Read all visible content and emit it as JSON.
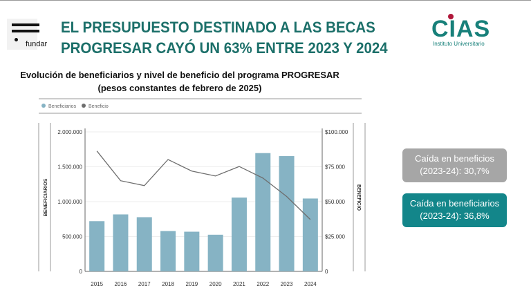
{
  "header": {
    "title_line1": "EL PRESUPUESTO DESTINADO A LAS BECAS",
    "title_line2": "PROGRESAR CAYÓ UN 63% ENTRE 2023 Y 2024",
    "logo_left": "fundar",
    "logo_right": "CIAS",
    "logo_right_sub": "Instituto Universitario"
  },
  "callouts": [
    {
      "line1": "Caída en beneficios",
      "line2": "(2023-24): 30,7%",
      "color": "#a6a6a6"
    },
    {
      "line1": "Caída en beneficiarios",
      "line2": "(2023-24): 36,8%",
      "color": "#13868a"
    }
  ],
  "chart_data": {
    "type": "bar+line",
    "title": "Evolución de beneficiarios y nivel de beneficio del programa PROGRESAR",
    "subtitle": "(pesos constantes de febrero de 2025)",
    "categories": [
      "2015",
      "2016",
      "2017",
      "2018",
      "2019",
      "2020",
      "2021",
      "2022",
      "2023",
      "2024"
    ],
    "series": [
      {
        "name": "Beneficiarios",
        "type": "bar",
        "axis": "left",
        "color": "#86b3c4",
        "values": [
          720000,
          817000,
          777000,
          578000,
          569000,
          526000,
          1058000,
          1696000,
          1653000,
          1045000
        ]
      },
      {
        "name": "Beneficio",
        "type": "line",
        "axis": "right",
        "color": "#6e6e6e",
        "values": [
          86300,
          65000,
          61500,
          80200,
          71900,
          68400,
          75200,
          66900,
          53700,
          37200
        ]
      }
    ],
    "ylabel": "BENEFICIARIOS",
    "y2label": "BENEFICIO",
    "ylim": [
      0,
      2000000
    ],
    "y2lim": [
      0,
      100000
    ],
    "yticks": [
      "0",
      "500.000",
      "1.000.000",
      "1.500.000",
      "2.000.000"
    ],
    "y2ticks": [
      "0",
      "$25.000",
      "$50.000",
      "$75.000",
      "$100.000"
    ],
    "legend": "top-left",
    "grid": true
  }
}
